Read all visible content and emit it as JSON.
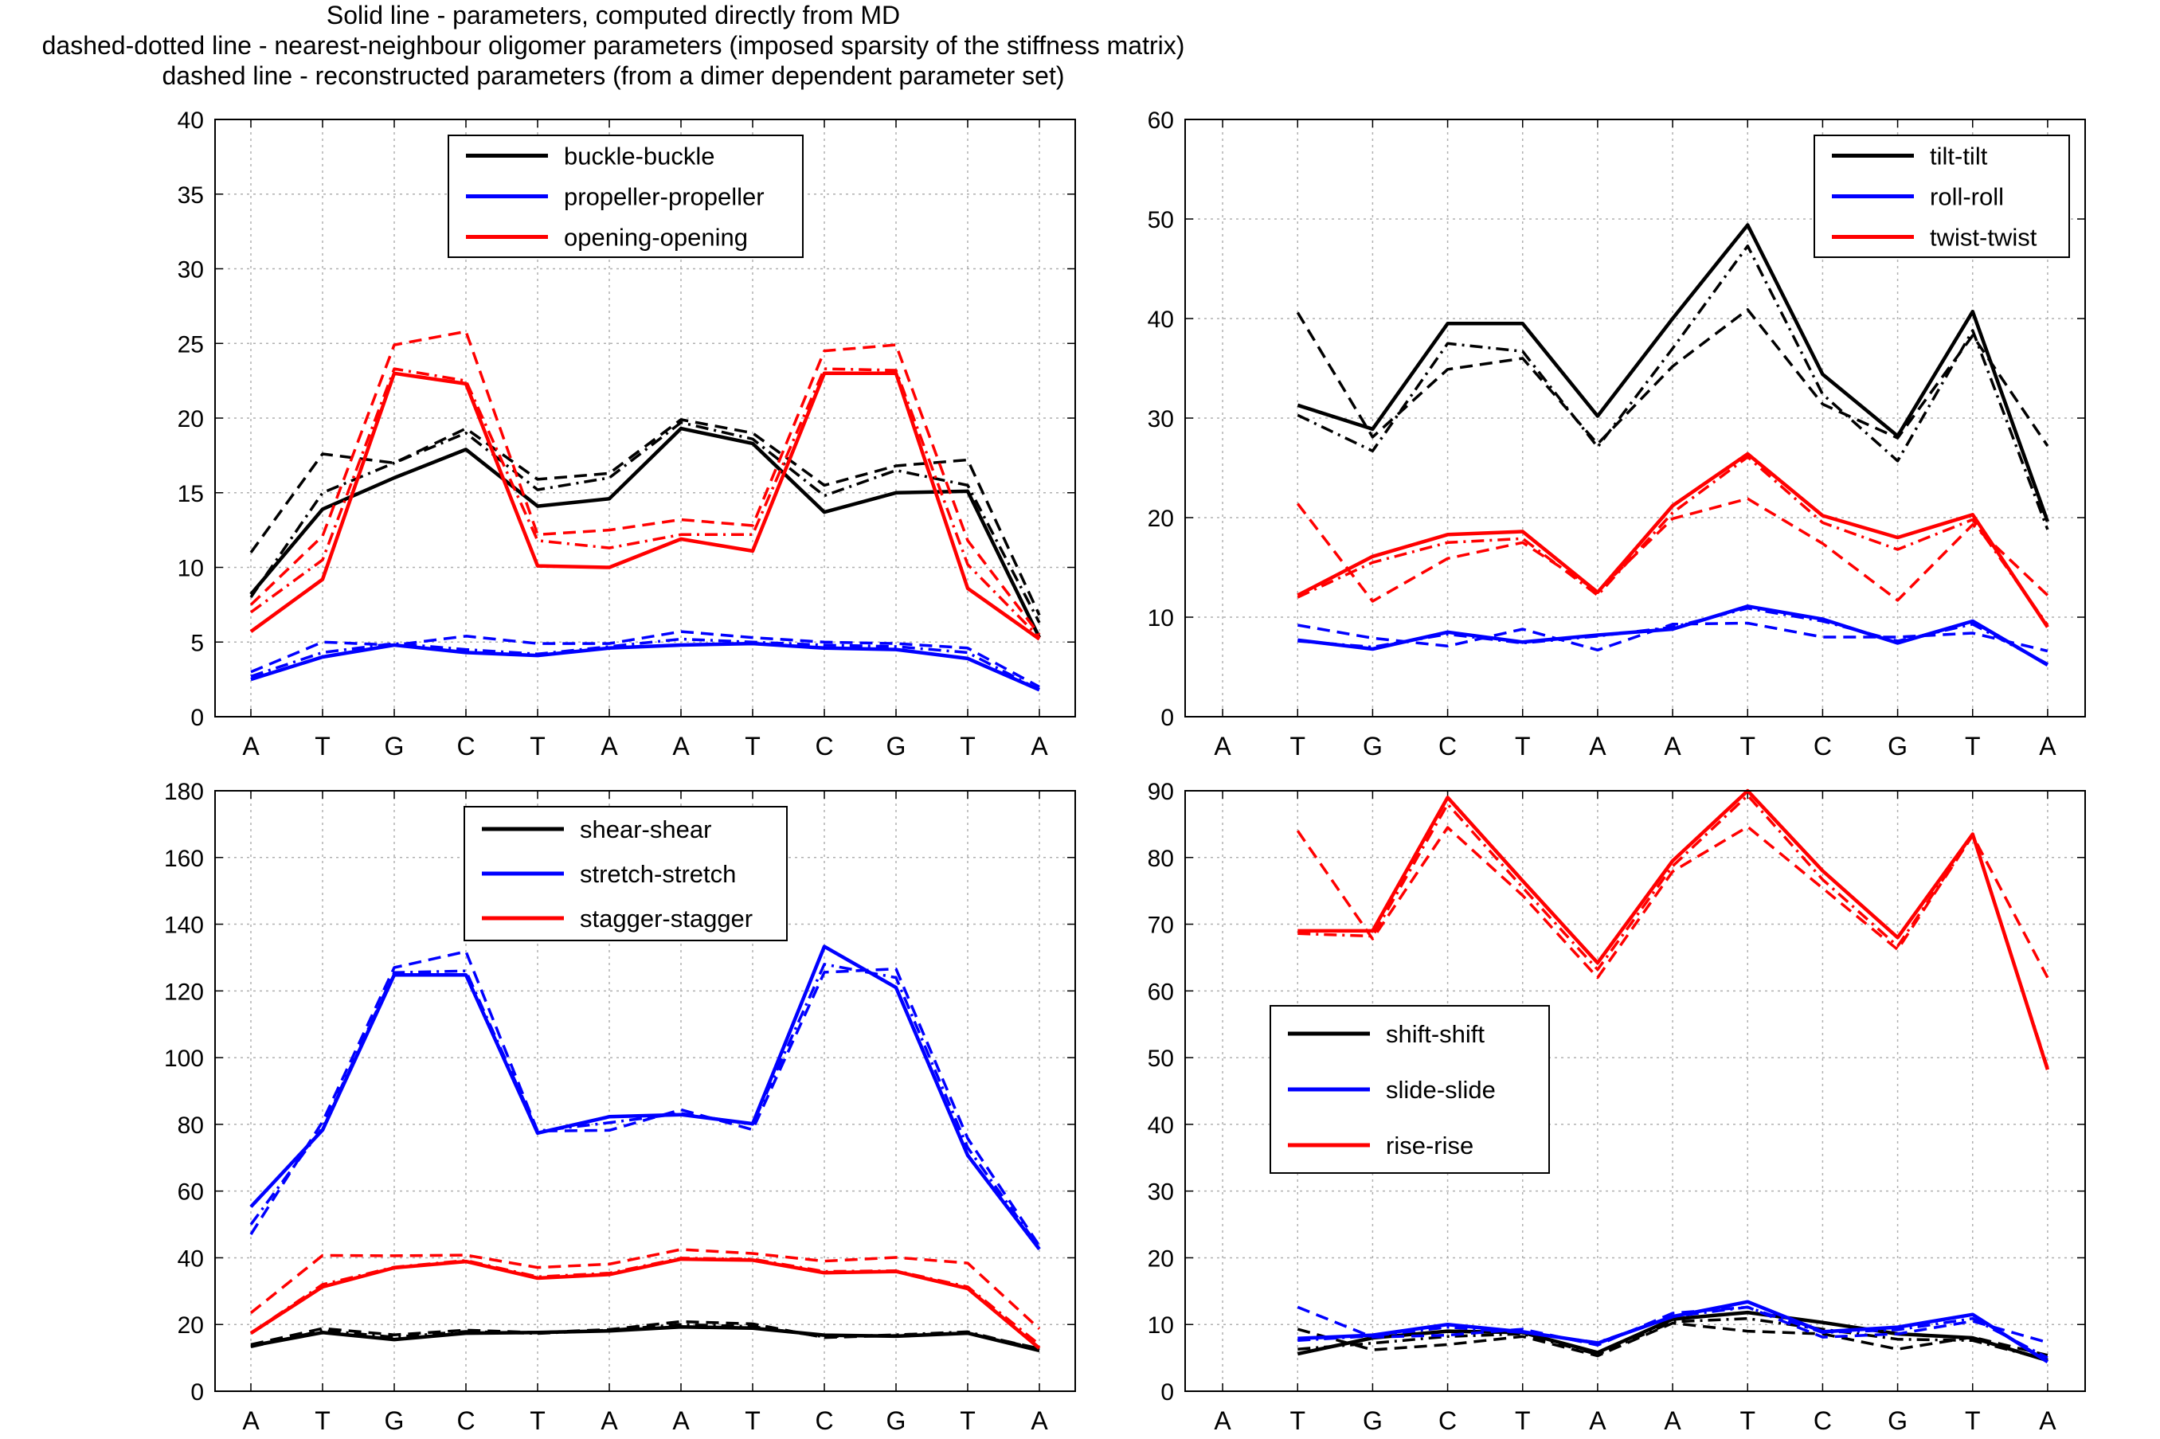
{
  "header": {
    "lines": [
      "Solid line - parameters, computed directly from MD",
      "dashed-dotted line - nearest-neighbour oligomer parameters (imposed sparsity of the stiffness matrix)",
      "dashed line - reconstructed parameters (from a dimer dependent parameter set)"
    ]
  },
  "colors": {
    "black": "#000000",
    "blue": "#0000ff",
    "red": "#ff0000",
    "grid": "#b0b0b0"
  },
  "chart_data": [
    {
      "type": "line",
      "panel": "top-left",
      "categories": [
        "A",
        "T",
        "G",
        "C",
        "T",
        "A",
        "A",
        "T",
        "C",
        "G",
        "T",
        "A"
      ],
      "ylim": [
        0,
        40
      ],
      "yticks": [
        0,
        5,
        10,
        15,
        20,
        25,
        30,
        35,
        40
      ],
      "grid": true,
      "legend_position": "top-center",
      "series": [
        {
          "name": "buckle-buckle",
          "color": "black",
          "style": "solid",
          "values": [
            8.2,
            13.9,
            16.0,
            17.9,
            14.1,
            14.6,
            19.3,
            18.3,
            13.7,
            15.0,
            15.1,
            5.3
          ]
        },
        {
          "color": "black",
          "style": "dashdot",
          "values": [
            8.0,
            15.0,
            17.0,
            19.0,
            15.2,
            16.0,
            19.7,
            18.6,
            14.8,
            16.5,
            15.5,
            6.3
          ]
        },
        {
          "color": "black",
          "style": "dashed",
          "values": [
            11.0,
            17.6,
            17.0,
            19.3,
            15.9,
            16.3,
            19.9,
            19.0,
            15.5,
            16.8,
            17.2,
            6.8
          ]
        },
        {
          "name": "propeller-propeller",
          "color": "blue",
          "style": "solid",
          "values": [
            2.5,
            4.0,
            4.8,
            4.3,
            4.1,
            4.6,
            4.8,
            4.9,
            4.6,
            4.5,
            3.9,
            1.8
          ]
        },
        {
          "color": "blue",
          "style": "dashdot",
          "values": [
            2.7,
            4.3,
            4.9,
            4.5,
            4.2,
            4.7,
            5.2,
            5.0,
            4.8,
            4.7,
            4.3,
            1.8
          ]
        },
        {
          "color": "blue",
          "style": "dashed",
          "values": [
            3.0,
            5.0,
            4.8,
            5.4,
            4.9,
            4.9,
            5.7,
            5.3,
            5.0,
            4.9,
            4.6,
            2.0
          ]
        },
        {
          "name": "opening-opening",
          "color": "red",
          "style": "solid",
          "values": [
            5.7,
            9.2,
            23.0,
            22.3,
            10.1,
            10.0,
            11.9,
            11.1,
            23.0,
            23.0,
            8.6,
            5.2
          ]
        },
        {
          "color": "red",
          "style": "dashdot",
          "values": [
            7.0,
            10.5,
            23.3,
            22.5,
            11.8,
            11.3,
            12.2,
            12.2,
            23.3,
            23.2,
            10.2,
            5.3
          ]
        },
        {
          "color": "red",
          "style": "dashed",
          "values": [
            7.5,
            12.1,
            24.9,
            25.8,
            12.2,
            12.5,
            13.2,
            12.8,
            24.5,
            24.9,
            11.8,
            5.5
          ]
        }
      ]
    },
    {
      "type": "line",
      "panel": "top-right",
      "categories": [
        "A",
        "T",
        "G",
        "C",
        "T",
        "A",
        "A",
        "T",
        "C",
        "G",
        "T",
        "A"
      ],
      "ylim": [
        0,
        60
      ],
      "yticks": [
        0,
        10,
        20,
        30,
        40,
        50,
        60
      ],
      "grid": true,
      "legend_position": "top-right",
      "series": [
        {
          "name": "tilt-tilt",
          "color": "black",
          "style": "solid",
          "values": [
            null,
            31.3,
            28.9,
            39.5,
            39.5,
            30.2,
            40.0,
            49.4,
            34.4,
            28.2,
            40.7,
            19.6
          ]
        },
        {
          "color": "black",
          "style": "dashdot",
          "values": [
            null,
            30.3,
            26.7,
            37.5,
            36.7,
            27.1,
            37.0,
            47.3,
            32.4,
            25.7,
            38.8,
            18.8
          ]
        },
        {
          "color": "black",
          "style": "dashed",
          "values": [
            null,
            40.6,
            28.1,
            34.9,
            36.0,
            27.4,
            35.2,
            40.9,
            31.4,
            28.0,
            38.3,
            27.2
          ]
        },
        {
          "name": "roll-roll",
          "color": "blue",
          "style": "solid",
          "values": [
            null,
            7.7,
            6.8,
            8.5,
            7.5,
            8.2,
            8.8,
            11.1,
            9.8,
            7.4,
            9.6,
            5.2
          ]
        },
        {
          "color": "blue",
          "style": "dashdot",
          "values": [
            null,
            7.6,
            7.0,
            8.3,
            7.4,
            8.1,
            9.0,
            10.9,
            9.6,
            7.6,
            9.3,
            5.3
          ]
        },
        {
          "color": "blue",
          "style": "dashed",
          "values": [
            null,
            9.2,
            7.9,
            7.1,
            8.8,
            6.7,
            9.3,
            9.4,
            8.0,
            8.0,
            8.4,
            6.6
          ]
        },
        {
          "name": "twist-twist",
          "color": "red",
          "style": "solid",
          "values": [
            null,
            12.2,
            16.1,
            18.3,
            18.6,
            12.5,
            21.2,
            26.4,
            20.2,
            18.0,
            20.3,
            9.0
          ]
        },
        {
          "color": "red",
          "style": "dashdot",
          "values": [
            null,
            12.0,
            15.5,
            17.5,
            17.9,
            12.2,
            20.5,
            26.1,
            19.5,
            16.8,
            19.8,
            9.2
          ]
        },
        {
          "color": "red",
          "style": "dashed",
          "values": [
            null,
            21.4,
            11.6,
            15.9,
            17.5,
            12.6,
            19.9,
            21.9,
            17.4,
            11.7,
            19.3,
            12.2
          ]
        }
      ]
    },
    {
      "type": "line",
      "panel": "bottom-left",
      "categories": [
        "A",
        "T",
        "G",
        "C",
        "T",
        "A",
        "A",
        "T",
        "C",
        "G",
        "T",
        "A"
      ],
      "ylim": [
        0,
        180
      ],
      "yticks": [
        0,
        20,
        40,
        60,
        80,
        100,
        120,
        140,
        160,
        180
      ],
      "grid": true,
      "legend_position": "top-center",
      "series": [
        {
          "name": "shear-shear",
          "color": "black",
          "style": "solid",
          "values": [
            13.6,
            17.6,
            15.5,
            17.4,
            17.6,
            18.1,
            19.3,
            18.9,
            16.8,
            16.5,
            17.4,
            12.2
          ]
        },
        {
          "color": "black",
          "style": "dashdot",
          "values": [
            13.3,
            18.2,
            16.2,
            17.9,
            17.3,
            18.3,
            20.0,
            19.4,
            16.3,
            16.9,
            17.8,
            12.5
          ]
        },
        {
          "color": "black",
          "style": "dashed",
          "values": [
            14.0,
            18.8,
            16.9,
            18.3,
            17.6,
            18.5,
            20.9,
            20.2,
            16.1,
            16.7,
            17.5,
            12.8
          ]
        },
        {
          "name": "stretch-stretch",
          "color": "blue",
          "style": "solid",
          "values": [
            55.3,
            78.3,
            124.8,
            124.8,
            77.4,
            82.3,
            82.9,
            80.2,
            133.3,
            121.0,
            70.7,
            42.6
          ]
        },
        {
          "color": "blue",
          "style": "dashdot",
          "values": [
            50.0,
            79.0,
            125.5,
            126.0,
            78.0,
            80.5,
            83.3,
            80.0,
            128.0,
            124.0,
            73.0,
            43.0
          ]
        },
        {
          "color": "blue",
          "style": "dashed",
          "values": [
            47.0,
            80.8,
            127.0,
            131.8,
            78.0,
            78.2,
            84.4,
            78.4,
            125.6,
            126.6,
            75.8,
            43.6
          ]
        },
        {
          "name": "stagger-stagger",
          "color": "red",
          "style": "solid",
          "values": [
            17.4,
            31.3,
            37.0,
            38.9,
            33.9,
            35.0,
            39.6,
            39.3,
            35.5,
            35.9,
            30.8,
            12.9
          ]
        },
        {
          "color": "red",
          "style": "dashdot",
          "values": [
            17.4,
            32.0,
            37.2,
            39.2,
            34.3,
            35.4,
            39.9,
            39.6,
            35.9,
            36.1,
            31.3,
            14.0
          ]
        },
        {
          "color": "red",
          "style": "dashed",
          "values": [
            23.5,
            40.7,
            40.6,
            40.8,
            37.1,
            38.1,
            42.5,
            41.3,
            39.0,
            40.1,
            38.4,
            18.7
          ]
        }
      ]
    },
    {
      "type": "line",
      "panel": "bottom-right",
      "categories": [
        "A",
        "T",
        "G",
        "C",
        "T",
        "A",
        "A",
        "T",
        "C",
        "G",
        "T",
        "A"
      ],
      "ylim": [
        0,
        90
      ],
      "yticks": [
        0,
        10,
        20,
        30,
        40,
        50,
        60,
        70,
        80,
        90
      ],
      "grid": true,
      "legend_position": "center-left",
      "series": [
        {
          "name": "shift-shift",
          "color": "black",
          "style": "solid",
          "values": [
            null,
            5.6,
            8.0,
            9.0,
            8.8,
            5.8,
            10.8,
            11.8,
            10.3,
            8.6,
            8.0,
            4.6
          ]
        },
        {
          "color": "black",
          "style": "dashdot",
          "values": [
            null,
            6.3,
            7.2,
            8.2,
            8.6,
            5.5,
            10.4,
            10.9,
            9.3,
            7.8,
            7.6,
            4.7
          ]
        },
        {
          "color": "black",
          "style": "dashed",
          "values": [
            null,
            9.3,
            6.2,
            7.0,
            8.2,
            5.3,
            10.2,
            9.0,
            8.6,
            6.3,
            8.1,
            5.4
          ]
        },
        {
          "name": "slide-slide",
          "color": "blue",
          "style": "solid",
          "values": [
            null,
            7.9,
            8.4,
            10.0,
            8.9,
            7.2,
            11.2,
            13.4,
            8.9,
            9.6,
            11.5,
            4.4
          ]
        },
        {
          "color": "blue",
          "style": "dashdot",
          "values": [
            null,
            7.6,
            8.3,
            9.6,
            8.8,
            7.3,
            11.2,
            12.6,
            8.8,
            9.2,
            10.9,
            5.0
          ]
        },
        {
          "color": "blue",
          "style": "dashed",
          "values": [
            null,
            12.6,
            8.1,
            8.4,
            9.3,
            6.9,
            11.7,
            12.6,
            8.1,
            8.6,
            10.5,
            7.3
          ]
        },
        {
          "name": "rise-rise",
          "color": "red",
          "style": "solid",
          "values": [
            null,
            69.0,
            69.0,
            89.0,
            76.5,
            64.2,
            79.5,
            90.0,
            78.0,
            68.0,
            83.5,
            48.2
          ]
        },
        {
          "color": "red",
          "style": "dashdot",
          "values": [
            null,
            68.6,
            68.2,
            88.0,
            75.5,
            63.2,
            78.7,
            89.3,
            76.7,
            66.7,
            83.3,
            48.5
          ]
        },
        {
          "color": "red",
          "style": "dashed",
          "values": [
            null,
            84.0,
            67.8,
            84.5,
            74.3,
            62.0,
            77.9,
            84.6,
            75.4,
            66.2,
            83.3,
            62.0
          ]
        }
      ]
    }
  ]
}
